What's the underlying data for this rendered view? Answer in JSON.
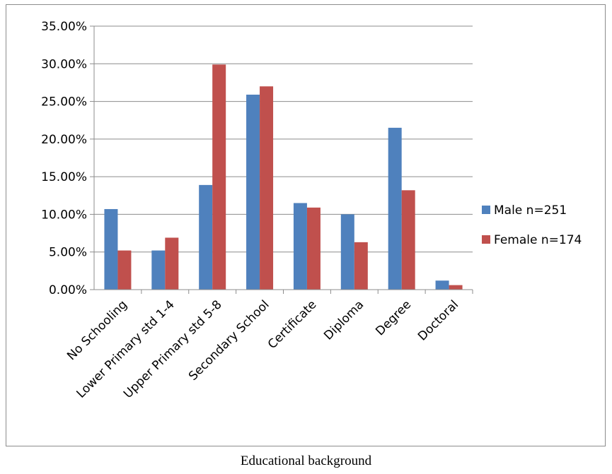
{
  "caption": "Educational background",
  "chart_data": {
    "type": "bar",
    "categories": [
      "No Schooling",
      "Lower Primary std 1-4",
      "Upper Primary std 5-8",
      "Secondary School",
      "Certificate",
      "Diploma",
      "Degree",
      "Doctoral"
    ],
    "series": [
      {
        "name": "Male n=251",
        "color": "#4f81bd",
        "values": [
          10.7,
          5.2,
          13.9,
          25.9,
          11.5,
          10.0,
          21.5,
          1.2
        ]
      },
      {
        "name": "Female n=174",
        "color": "#c0504d",
        "values": [
          5.2,
          6.9,
          29.9,
          27.0,
          10.9,
          6.3,
          13.2,
          0.6
        ]
      }
    ],
    "ylim": [
      0,
      35
    ],
    "yticks": [
      0,
      5,
      10,
      15,
      20,
      25,
      30,
      35
    ],
    "ytick_labels": [
      "0.00%",
      "5.00%",
      "10.00%",
      "15.00%",
      "20.00%",
      "25.00%",
      "30.00%",
      "35.00%"
    ],
    "grid": true,
    "legend": "right"
  }
}
